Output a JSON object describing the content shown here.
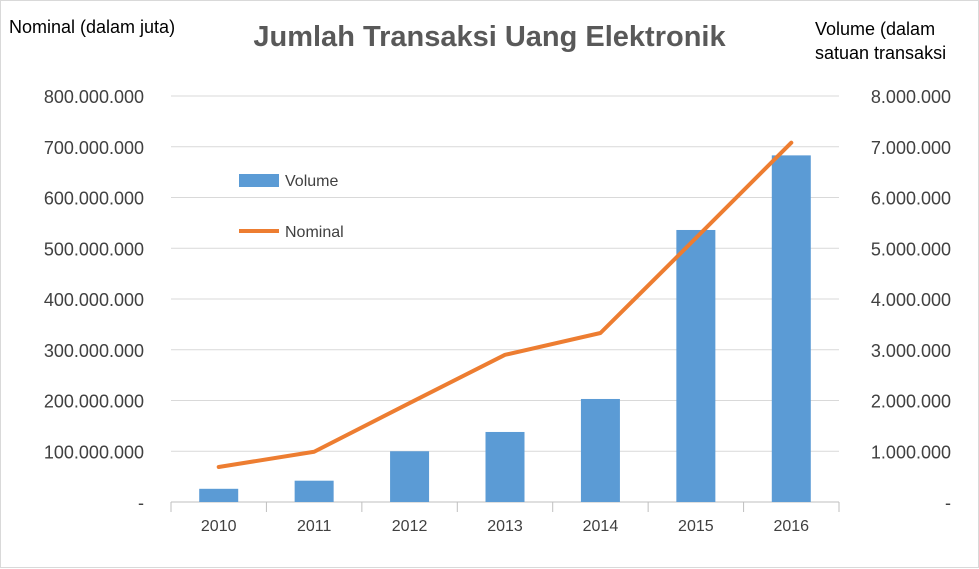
{
  "chart_data": {
    "type": "bar+line",
    "title": "Jumlah Transaksi Uang Elektronik",
    "categories": [
      "2010",
      "2011",
      "2012",
      "2013",
      "2014",
      "2015",
      "2016"
    ],
    "series": [
      {
        "name": "Volume",
        "type": "bar",
        "axis": "right",
        "color": "#5b9bd5",
        "values": [
          260000,
          420000,
          1000000,
          1380000,
          2030000,
          5360000,
          6830000
        ]
      },
      {
        "name": "Nominal",
        "type": "line",
        "axis": "left",
        "color": "#ed7d31",
        "values": [
          69000000,
          99000000,
          195000000,
          290000000,
          333000000,
          520000000,
          708000000
        ]
      }
    ],
    "left_axis": {
      "label": "Nominal (dalam juta)",
      "ylim": [
        0,
        800000000
      ],
      "ticks": [
        "-",
        "100.000.000",
        "200.000.000",
        "300.000.000",
        "400.000.000",
        "500.000.000",
        "600.000.000",
        "700.000.000",
        "800.000.000"
      ]
    },
    "right_axis": {
      "label": "Volume (dalam satuan transaksi",
      "ylim": [
        0,
        8000000
      ],
      "ticks": [
        "-",
        "1.000.000",
        "2.000.000",
        "3.000.000",
        "4.000.000",
        "5.000.000",
        "6.000.000",
        "7.000.000",
        "8.000.000"
      ]
    },
    "grid": true,
    "legend": {
      "placement": "inside-top-left",
      "entries": [
        "Volume",
        "Nominal"
      ]
    }
  }
}
